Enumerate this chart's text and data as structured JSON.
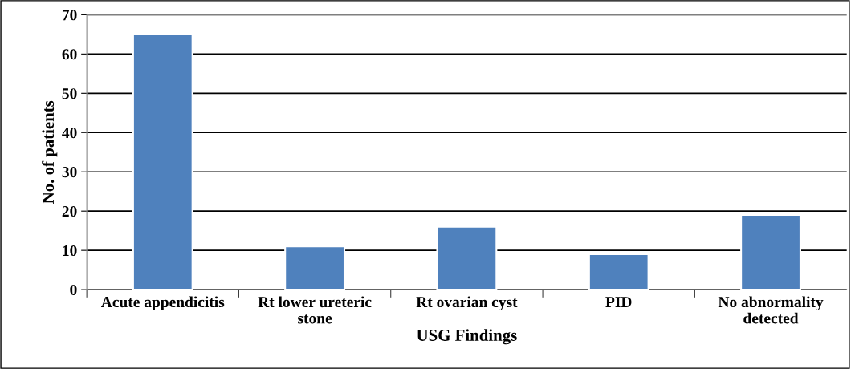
{
  "chart_data": {
    "type": "bar",
    "xlabel": "USG Findings",
    "ylabel": "No. of patients",
    "categories": [
      "Acute appendicitis",
      "Rt lower ureteric\nstone",
      "Rt ovarian cyst",
      "PID",
      "No abnormality\ndetected"
    ],
    "values": [
      65,
      11,
      16,
      9,
      19
    ],
    "color": "#4f81bd",
    "ylim": [
      0,
      70
    ],
    "yticks": [
      0,
      10,
      20,
      30,
      40,
      50,
      60,
      70
    ],
    "grid": "y",
    "legend": false
  }
}
